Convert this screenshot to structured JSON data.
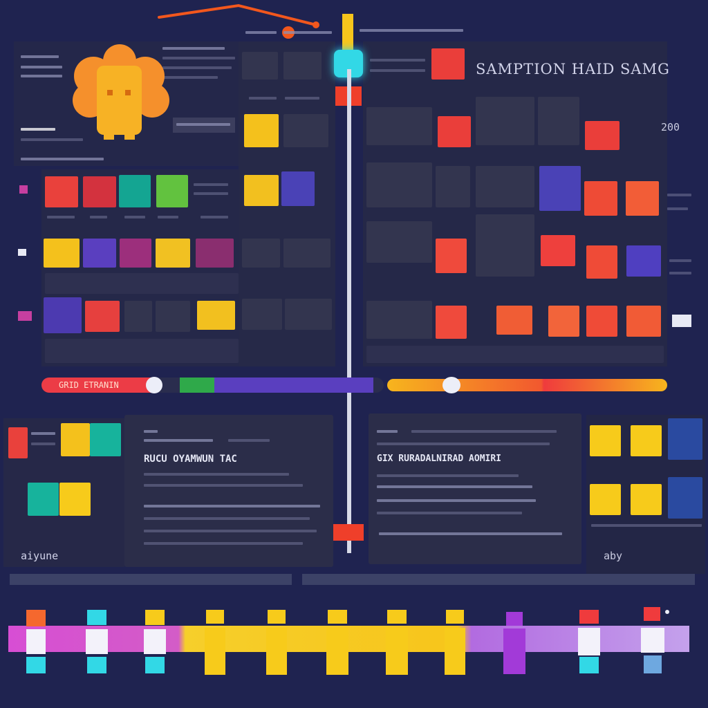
{
  "app": {
    "title": "SAMPTION HAID SAMG",
    "side_label": "aiyune",
    "right_code_1": "200",
    "right_code_2": "aby"
  },
  "colors": {
    "background": "#1f2350",
    "panel": "#2a2c4a",
    "red": "#ef4b3b",
    "orange": "#f5682e",
    "yellow": "#f7cb1b",
    "teal": "#17b39c",
    "green": "#6ac542",
    "purple": "#5a3fbf",
    "magenta": "#a3328c",
    "cyan": "#32d8e6"
  },
  "cards": {
    "middle_heading": "RUCU OYAMWUN TAC",
    "right_heading": "GIX RURADALNIRAD AOMIRI"
  },
  "sliders": {
    "left_label": "GRID ETRANIN",
    "timeline_value": 0.33,
    "color_value": 0.23
  },
  "icons": {
    "mascot": "gear-mascot-icon",
    "crosshair": "crosshair-icon",
    "badge": "badge-icon"
  }
}
